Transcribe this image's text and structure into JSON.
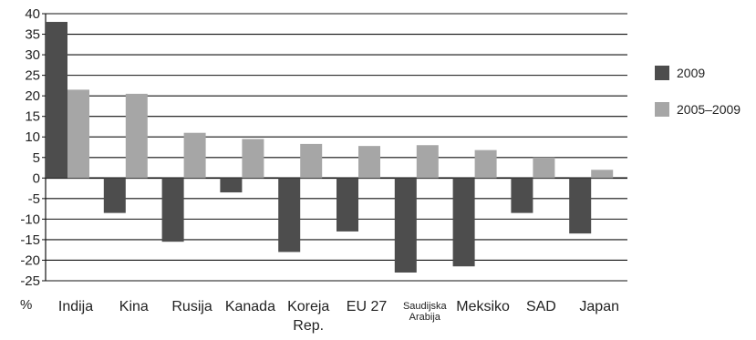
{
  "chart_data": {
    "type": "bar",
    "unit_label": "%",
    "categories": [
      [
        "Indija"
      ],
      [
        "Kina"
      ],
      [
        "Rusija"
      ],
      [
        "Kanada"
      ],
      [
        "Koreja",
        "Rep."
      ],
      [
        "EU 27"
      ],
      [
        "Saudijska",
        "Arabija"
      ],
      [
        "Meksiko"
      ],
      [
        "SAD"
      ],
      [
        "Japan"
      ]
    ],
    "series": [
      {
        "name": "2009",
        "color": "#4d4d4d",
        "values": [
          38,
          -8.5,
          -15.5,
          -3.5,
          -18,
          -13,
          -23,
          -21.5,
          -8.5,
          -13.5
        ]
      },
      {
        "name": "2005–2009",
        "color": "#a6a6a6",
        "values": [
          21.5,
          20.5,
          11,
          9.5,
          8.3,
          7.8,
          8,
          6.8,
          5,
          2
        ]
      }
    ],
    "ylim": [
      -25,
      40
    ],
    "yticks": [
      40,
      35,
      30,
      25,
      20,
      15,
      10,
      5,
      0,
      -5,
      -10,
      -15,
      -20,
      -25
    ],
    "grid": true,
    "legend_position": "right"
  }
}
